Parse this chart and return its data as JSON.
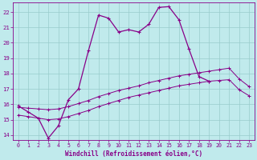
{
  "xlabel": "Windchill (Refroidissement éolien,°C)",
  "background_color": "#c0eaec",
  "line_color": "#880088",
  "grid_color": "#99cccc",
  "xlim": [
    -0.5,
    23.5
  ],
  "ylim": [
    13.7,
    22.6
  ],
  "yticks": [
    14,
    15,
    16,
    17,
    18,
    19,
    20,
    21,
    22
  ],
  "xticks": [
    0,
    1,
    2,
    3,
    4,
    5,
    6,
    7,
    8,
    9,
    10,
    11,
    12,
    13,
    14,
    15,
    16,
    17,
    18,
    19,
    20,
    21,
    22,
    23
  ],
  "s1_x": [
    0,
    1,
    2,
    3,
    4,
    5,
    6,
    7,
    8,
    9,
    10,
    11,
    12,
    13,
    14,
    15,
    16,
    17,
    18,
    19
  ],
  "s1_y": [
    15.9,
    15.5,
    15.1,
    13.8,
    14.6,
    16.3,
    17.0,
    19.5,
    21.8,
    21.6,
    20.7,
    20.85,
    20.7,
    21.2,
    22.3,
    22.35,
    21.5,
    19.6,
    17.8,
    17.5
  ],
  "s2_x": [
    0,
    1,
    2,
    3,
    4,
    5,
    6,
    7,
    8,
    9,
    10,
    11,
    12,
    13,
    14,
    15,
    16,
    17,
    18,
    19,
    20,
    21,
    22,
    23
  ],
  "s2_y": [
    15.8,
    15.75,
    15.7,
    15.65,
    15.7,
    15.85,
    16.05,
    16.25,
    16.5,
    16.7,
    16.9,
    17.05,
    17.2,
    17.4,
    17.55,
    17.7,
    17.85,
    17.95,
    18.05,
    18.15,
    18.25,
    18.35,
    17.65,
    17.15
  ],
  "s3_x": [
    0,
    1,
    2,
    3,
    4,
    5,
    6,
    7,
    8,
    9,
    10,
    11,
    12,
    13,
    14,
    15,
    16,
    17,
    18,
    19,
    20,
    21,
    22,
    23
  ],
  "s3_y": [
    15.3,
    15.2,
    15.1,
    15.0,
    15.05,
    15.2,
    15.4,
    15.6,
    15.85,
    16.05,
    16.25,
    16.45,
    16.6,
    16.75,
    16.9,
    17.05,
    17.2,
    17.3,
    17.4,
    17.5,
    17.55,
    17.6,
    16.95,
    16.55
  ]
}
